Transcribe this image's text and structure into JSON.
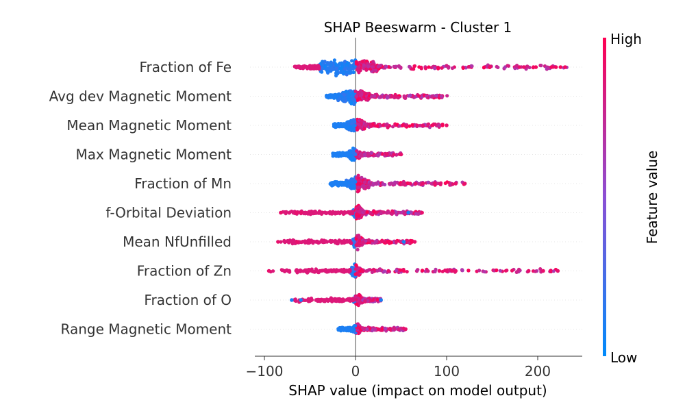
{
  "chart_data": {
    "type": "scatter",
    "subtype": "beeswarm",
    "title": "SHAP Beeswarm - Cluster 1",
    "xlabel": "SHAP value (impact on model output)",
    "xlim": [
      -110,
      250
    ],
    "xticks": [
      -100,
      0,
      100,
      200
    ],
    "xtick_labels": [
      "−100",
      "0",
      "100",
      "200"
    ],
    "grid": false,
    "colorbar": {
      "label": "Feature value",
      "high_label": "High",
      "low_label": "Low",
      "high_color": "#ff0052",
      "low_color": "#008bfb"
    },
    "features": [
      {
        "name": "Fraction of Fe",
        "min": -68,
        "max": 232,
        "core": [
          -40,
          25
        ],
        "core_width": 18,
        "outliers": [
          [
            198,
            0.95
          ],
          [
            215,
            0.95
          ],
          [
            220,
            0.95
          ],
          [
            225,
            0.95
          ],
          [
            230,
            0.95
          ],
          [
            185,
            0.9
          ],
          [
            180,
            0.9
          ]
        ]
      },
      {
        "name": "Avg dev Magnetic Moment",
        "min": -32,
        "max": 102,
        "core": [
          -20,
          15
        ],
        "core_width": 14,
        "outliers": []
      },
      {
        "name": "Mean Magnetic Moment",
        "min": -25,
        "max": 100,
        "core": [
          -10,
          10
        ],
        "core_width": 12,
        "outliers": [
          [
            74,
            0.9
          ],
          [
            100,
            0.9
          ]
        ]
      },
      {
        "name": "Max Magnetic Moment",
        "min": -28,
        "max": 50,
        "core": [
          -8,
          5
        ],
        "core_width": 11,
        "outliers": [
          [
            42,
            0.9
          ],
          [
            50,
            0.9
          ]
        ]
      },
      {
        "name": "Fraction of Mn",
        "min": -28,
        "max": 120,
        "core": [
          -10,
          15
        ],
        "core_width": 14,
        "outliers": [
          [
            60,
            0.9
          ],
          [
            66,
            0.9
          ],
          [
            74,
            0.9
          ],
          [
            87,
            0.9
          ],
          [
            110,
            0.9
          ],
          [
            120,
            0.9
          ]
        ]
      },
      {
        "name": "f-Orbital Deviation",
        "min": -82,
        "max": 73,
        "core": [
          -3,
          8
        ],
        "core_width": 12,
        "outliers": [
          [
            -82,
            0.9
          ],
          [
            -65,
            0.9
          ],
          [
            -60,
            0.9
          ],
          [
            58,
            0.1
          ],
          [
            73,
            0.9
          ]
        ]
      },
      {
        "name": "Mean NfUnfilled",
        "min": -85,
        "max": 65,
        "core": [
          -3,
          8
        ],
        "core_width": 12,
        "outliers": [
          [
            -85,
            0.9
          ],
          [
            -64,
            0.9
          ],
          [
            53,
            0.1
          ],
          [
            65,
            0.9
          ]
        ]
      },
      {
        "name": "Fraction of Zn",
        "min": -95,
        "max": 222,
        "core": [
          -5,
          5
        ],
        "core_width": 12,
        "outliers": [
          [
            -95,
            0.9
          ],
          [
            92,
            0.9
          ],
          [
            100,
            0.9
          ],
          [
            106,
            0.9
          ],
          [
            110,
            0.9
          ],
          [
            190,
            0.9
          ],
          [
            206,
            0.9
          ],
          [
            222,
            0.9
          ]
        ]
      },
      {
        "name": "Fraction of O",
        "min": -70,
        "max": 28,
        "core": [
          -2,
          8
        ],
        "core_width": 11,
        "outliers": [
          [
            -70,
            0.1
          ],
          [
            -60,
            0.1
          ],
          [
            28,
            0.1
          ]
        ]
      },
      {
        "name": "Range Magnetic Moment",
        "min": -20,
        "max": 55,
        "core": [
          -3,
          5
        ],
        "core_width": 10,
        "outliers": [
          [
            38,
            0.9
          ],
          [
            55,
            0.9
          ]
        ]
      }
    ]
  }
}
